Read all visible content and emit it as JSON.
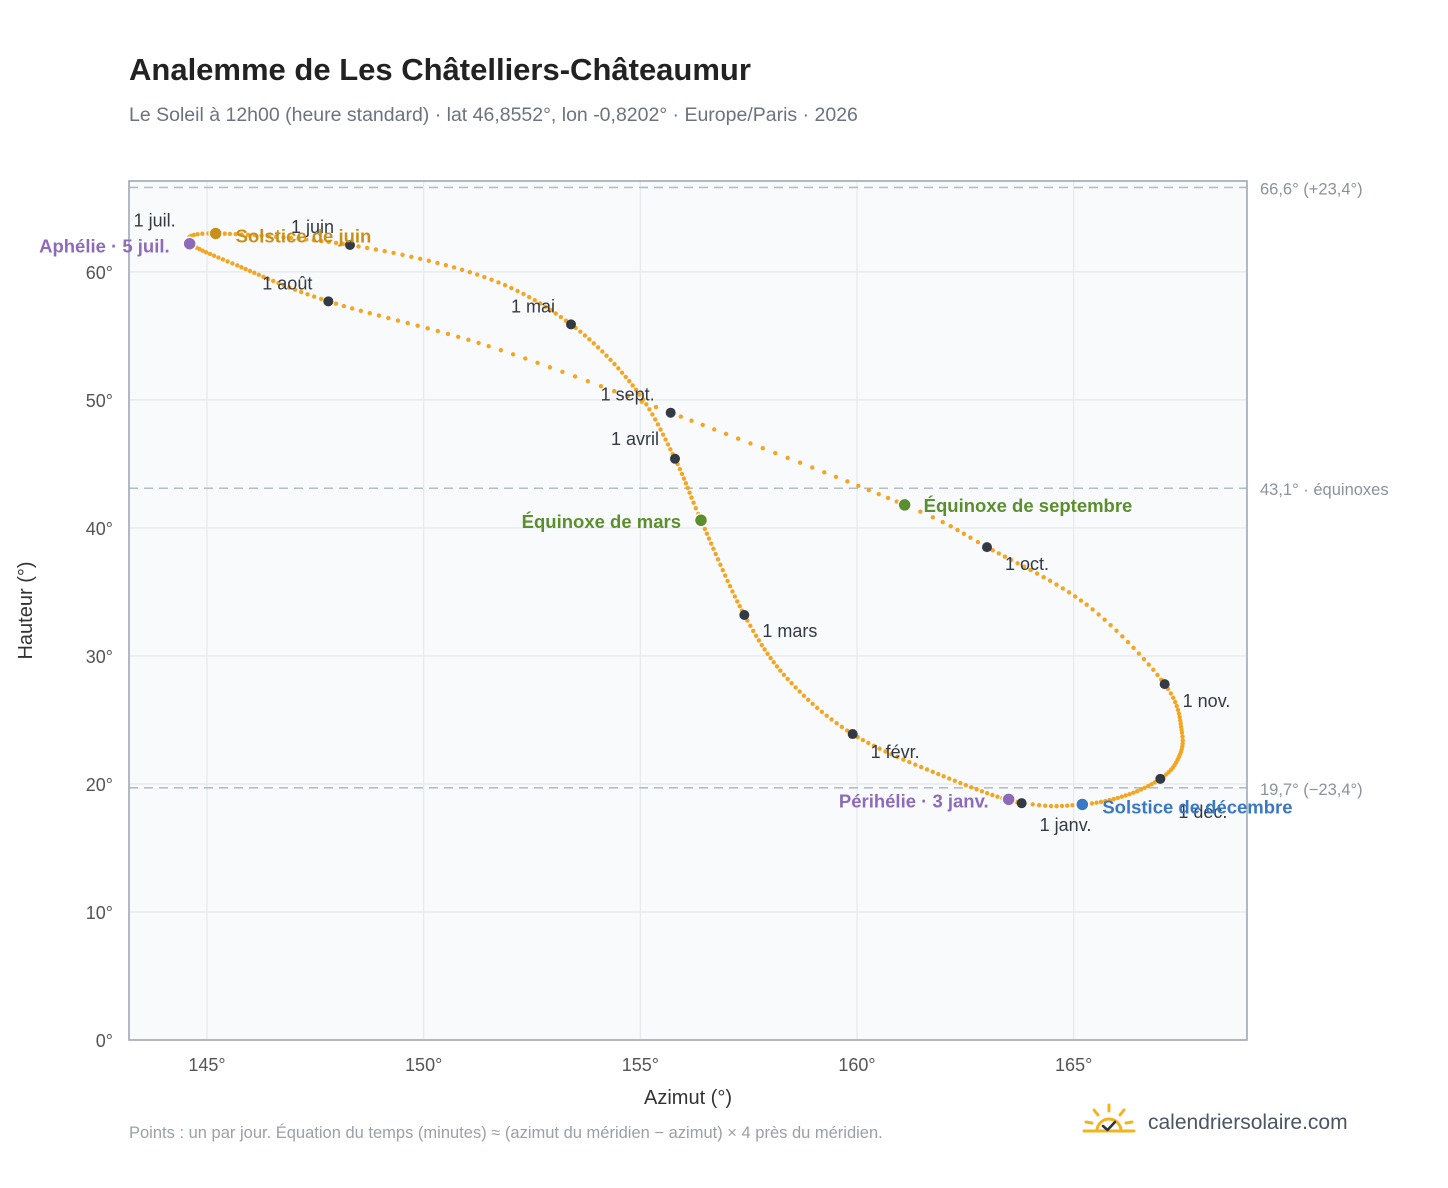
{
  "header": {
    "title": "Analemme de Les Châtelliers-Châteaumur",
    "subtitle": "Le Soleil à 12h00 (heure standard) · lat 46,8552°, lon -0,8202° · Europe/Paris · 2026"
  },
  "footer": {
    "note": "Points : un par jour. Équation du temps (minutes) ≈ (azimut du méridien − azimut) × 4 près du méridien.",
    "brand": "calendriersolaire.com",
    "brand_icon": "sun-check-icon"
  },
  "chart_data": {
    "type": "scatter",
    "xlabel": "Azimut (°)",
    "ylabel": "Hauteur (°)",
    "xlim": [
      143.2,
      169.0
    ],
    "ylim": [
      0,
      67.1
    ],
    "x_ticks": [
      145,
      150,
      155,
      160,
      165
    ],
    "x_tick_labels": [
      "145°",
      "150°",
      "155°",
      "160°",
      "165°"
    ],
    "y_ticks": [
      0,
      10,
      20,
      30,
      40,
      50,
      60
    ],
    "y_tick_labels": [
      "0°",
      "10°",
      "20°",
      "30°",
      "40°",
      "50°",
      "60°"
    ],
    "grid": true,
    "reference_lines": [
      {
        "y": 66.6,
        "label": "66,6° (+23,4°)"
      },
      {
        "y": 43.1,
        "label": "43,1° · équinoxes"
      },
      {
        "y": 19.7,
        "label": "19,7° (−23,4°)"
      }
    ],
    "curve_keypoints": [
      {
        "day": 1,
        "x": 163.8,
        "y": 18.5
      },
      {
        "day": 16,
        "x": 162.0,
        "y": 20.6
      },
      {
        "day": 32,
        "x": 159.9,
        "y": 23.9
      },
      {
        "day": 46,
        "x": 158.4,
        "y": 28.2
      },
      {
        "day": 60,
        "x": 157.4,
        "y": 33.2
      },
      {
        "day": 79,
        "x": 156.4,
        "y": 40.6
      },
      {
        "day": 91,
        "x": 155.8,
        "y": 45.4
      },
      {
        "day": 105,
        "x": 154.9,
        "y": 50.8
      },
      {
        "day": 121,
        "x": 153.4,
        "y": 55.9
      },
      {
        "day": 136,
        "x": 151.4,
        "y": 59.6
      },
      {
        "day": 152,
        "x": 148.3,
        "y": 62.1
      },
      {
        "day": 172,
        "x": 145.2,
        "y": 63.0
      },
      {
        "day": 182,
        "x": 144.6,
        "y": 62.3
      },
      {
        "day": 196,
        "x": 145.7,
        "y": 60.5
      },
      {
        "day": 213,
        "x": 147.8,
        "y": 57.7
      },
      {
        "day": 230,
        "x": 151.5,
        "y": 54.2
      },
      {
        "day": 244,
        "x": 155.7,
        "y": 49.0
      },
      {
        "day": 265,
        "x": 161.1,
        "y": 41.8
      },
      {
        "day": 274,
        "x": 163.0,
        "y": 38.5
      },
      {
        "day": 290,
        "x": 165.3,
        "y": 34.0
      },
      {
        "day": 305,
        "x": 167.1,
        "y": 27.8
      },
      {
        "day": 318,
        "x": 167.5,
        "y": 24.0
      },
      {
        "day": 327,
        "x": 167.4,
        "y": 21.9
      },
      {
        "day": 335,
        "x": 167.0,
        "y": 20.4
      },
      {
        "day": 345,
        "x": 166.2,
        "y": 19.1
      },
      {
        "day": 355,
        "x": 165.2,
        "y": 18.4
      },
      {
        "day": 365,
        "x": 163.9,
        "y": 18.5
      }
    ],
    "month_markers": [
      {
        "label": "1 janv.",
        "x": 163.8,
        "y": 18.5
      },
      {
        "label": "1 févr.",
        "x": 159.9,
        "y": 23.9
      },
      {
        "label": "1 mars",
        "x": 157.4,
        "y": 33.2
      },
      {
        "label": "1 avril",
        "x": 155.8,
        "y": 45.4
      },
      {
        "label": "1 mai",
        "x": 153.4,
        "y": 55.9
      },
      {
        "label": "1 juin",
        "x": 148.3,
        "y": 62.1
      },
      {
        "label": "1 juil.",
        "x": 144.6,
        "y": 62.3
      },
      {
        "label": "1 août",
        "x": 147.8,
        "y": 57.7
      },
      {
        "label": "1 sept.",
        "x": 155.7,
        "y": 49.0
      },
      {
        "label": "1 oct.",
        "x": 163.0,
        "y": 38.5
      },
      {
        "label": "1 nov.",
        "x": 167.1,
        "y": 27.8
      },
      {
        "label": "1 déc.",
        "x": 167.0,
        "y": 20.4
      }
    ],
    "special_events": [
      {
        "label": "Solstice de juin",
        "x": 145.2,
        "y": 63.0,
        "color": "#c8901a"
      },
      {
        "label": "Aphélie · 5 juil.",
        "x": 144.6,
        "y": 62.2,
        "color": "#8e6bb8"
      },
      {
        "label": "Équinoxe de mars",
        "x": 156.4,
        "y": 40.6,
        "color": "#5b8f2e"
      },
      {
        "label": "Équinoxe de septembre",
        "x": 161.1,
        "y": 41.8,
        "color": "#5b8f2e"
      },
      {
        "label": "Périhélie · 3 janv.",
        "x": 163.5,
        "y": 18.8,
        "color": "#8e6bb8"
      },
      {
        "label": "Solstice de décembre",
        "x": 165.2,
        "y": 18.4,
        "color": "#3a78c2"
      }
    ],
    "colors": {
      "curve": "#f2a623",
      "month_marker": "#333a44",
      "plot_background": "#f8fafc",
      "frame": "#a0a8b4",
      "grid": "#e5e8ec",
      "reference_line": "#b4bec8"
    }
  }
}
